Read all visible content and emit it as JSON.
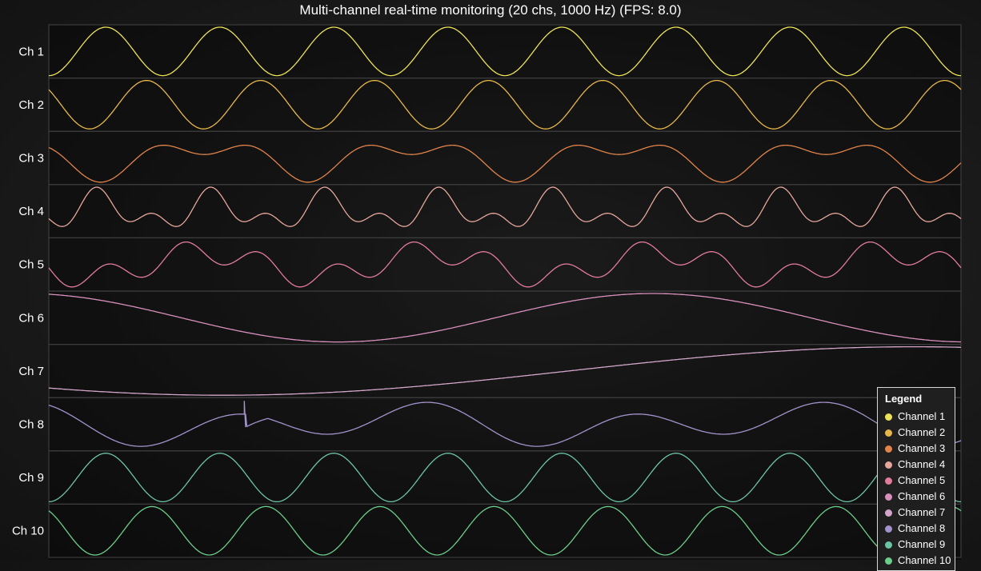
{
  "chart_data": {
    "type": "line",
    "title": "Multi-channel real-time monitoring (20 chs, 1000 Hz) (FPS: 8.0)",
    "channel_labels": [
      "Ch 1",
      "Ch 2",
      "Ch 3",
      "Ch 4",
      "Ch 5",
      "Ch 6",
      "Ch 7",
      "Ch 8",
      "Ch 9",
      "Ch 10"
    ],
    "legend_title": "Legend",
    "legend_entries": [
      "Channel 1",
      "Channel 2",
      "Channel 3",
      "Channel 4",
      "Channel 5",
      "Channel 6",
      "Channel 7",
      "Channel 8",
      "Channel 9",
      "Channel 10"
    ],
    "legend_placement": "bottom-right",
    "grid": false,
    "series_colors": [
      "#ede356",
      "#e6b749",
      "#e0844a",
      "#e5a79c",
      "#e17c9c",
      "#d990bd",
      "#d2a6ca",
      "#a393cc",
      "#6dc4a4",
      "#6ccd8a"
    ],
    "series_shapes": [
      {
        "terms": [
          {
            "a": 1,
            "c": 8,
            "p": 3.1416
          }
        ]
      },
      {
        "terms": [
          {
            "a": 1,
            "c": 8,
            "p": 0.9
          }
        ]
      },
      {
        "terms": [
          {
            "a": 0.6,
            "c": 4.4,
            "p": 1.5708
          },
          {
            "a": 0.45,
            "c": 8.8,
            "p": 0
          }
        ]
      },
      {
        "terms": [
          {
            "a": 0.55,
            "c": 8,
            "p": 3.5
          },
          {
            "a": 0.45,
            "c": 16,
            "p": 1.1
          }
        ]
      },
      {
        "terms": [
          {
            "a": 0.55,
            "c": 4,
            "p": 2.0
          },
          {
            "a": 0.5,
            "c": 12,
            "p": 1.4
          }
        ]
      },
      {
        "terms": [
          {
            "a": 1,
            "c": 1.45,
            "p": 0.25
          }
        ]
      },
      {
        "terms": [
          {
            "a": 1,
            "c": 0.66,
            "p": 2.35
          }
        ]
      },
      {
        "terms": [
          {
            "a": 0.65,
            "c": 4.6,
            "p": 0.4
          },
          {
            "a": 0.35,
            "c": 2.3,
            "p": 1.0
          }
        ],
        "jump": {
          "x": 0.215,
          "dy": 0.55
        }
      },
      {
        "terms": [
          {
            "a": 1,
            "c": 8,
            "p": 3.1416
          }
        ]
      },
      {
        "terms": [
          {
            "a": 1,
            "c": 8,
            "p": 0.6
          }
        ]
      }
    ]
  }
}
